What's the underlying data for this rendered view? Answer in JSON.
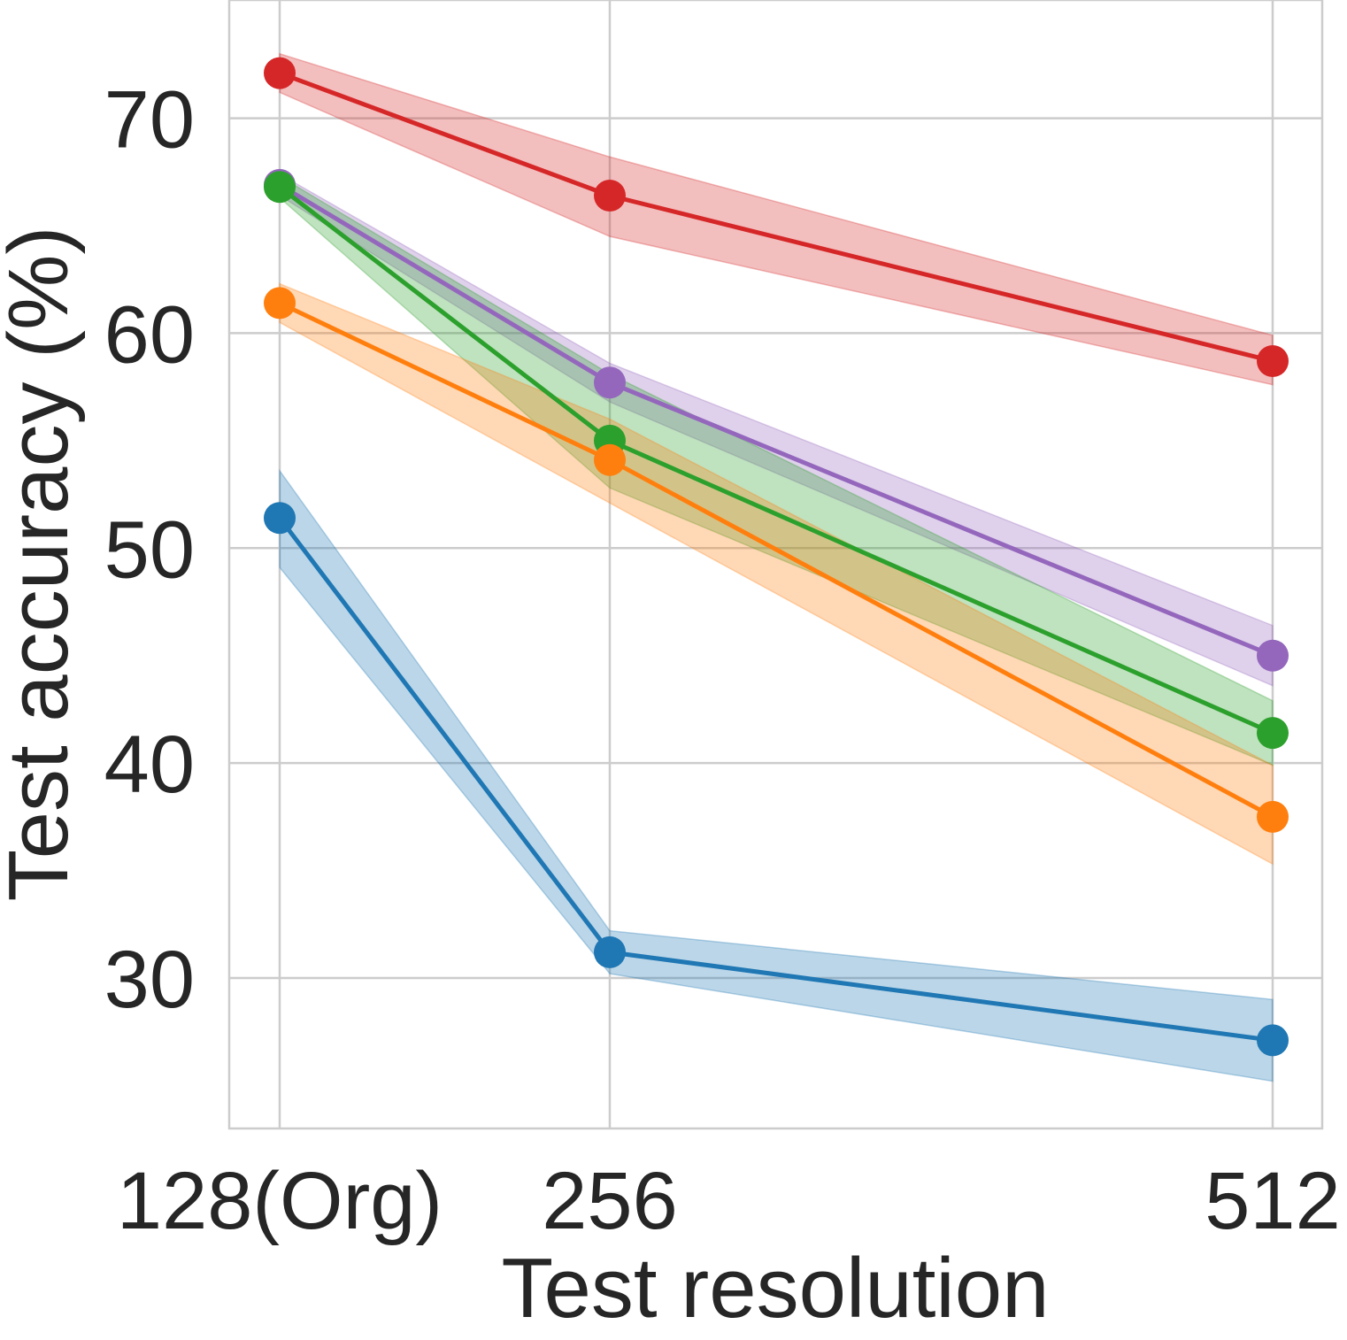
{
  "chart_data": {
    "type": "line",
    "title": "",
    "xlabel": "Test resolution",
    "ylabel": "Test accuracy (%)",
    "categories": [
      "128(Org)",
      "256",
      "512"
    ],
    "ylim": [
      23,
      75.5
    ],
    "yticks": [
      30,
      40,
      50,
      60,
      70
    ],
    "grid": true,
    "series": [
      {
        "color": "#d62728",
        "values": [
          72.1,
          66.4,
          58.7
        ],
        "lower": [
          71.2,
          64.5,
          57.6
        ],
        "upper": [
          73.0,
          68.2,
          59.9
        ]
      },
      {
        "color": "#9467bd",
        "values": [
          66.9,
          57.7,
          45.0
        ],
        "lower": [
          66.4,
          56.8,
          43.6
        ],
        "upper": [
          67.4,
          58.6,
          46.4
        ]
      },
      {
        "color": "#2ca02c",
        "values": [
          66.8,
          55.0,
          41.4
        ],
        "lower": [
          66.3,
          52.8,
          39.9
        ],
        "upper": [
          67.3,
          58.1,
          42.9
        ]
      },
      {
        "color": "#ff7f0e",
        "values": [
          61.4,
          54.1,
          37.5
        ],
        "lower": [
          60.5,
          52.1,
          35.3
        ],
        "upper": [
          62.3,
          56.0,
          39.9
        ]
      },
      {
        "color": "#1f77b4",
        "values": [
          51.4,
          31.2,
          27.1
        ],
        "lower": [
          49.1,
          30.2,
          25.2
        ],
        "upper": [
          53.6,
          32.2,
          29.0
        ]
      }
    ]
  }
}
